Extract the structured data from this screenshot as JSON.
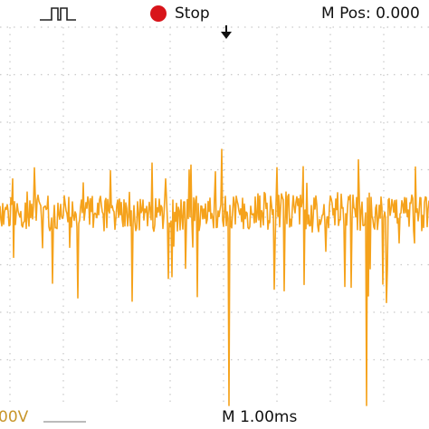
{
  "header": {
    "state": "Stop",
    "position": "M Pos: 0.000"
  },
  "footer": {
    "volts": "00V",
    "timebase": "M 1.00ms"
  }
}
